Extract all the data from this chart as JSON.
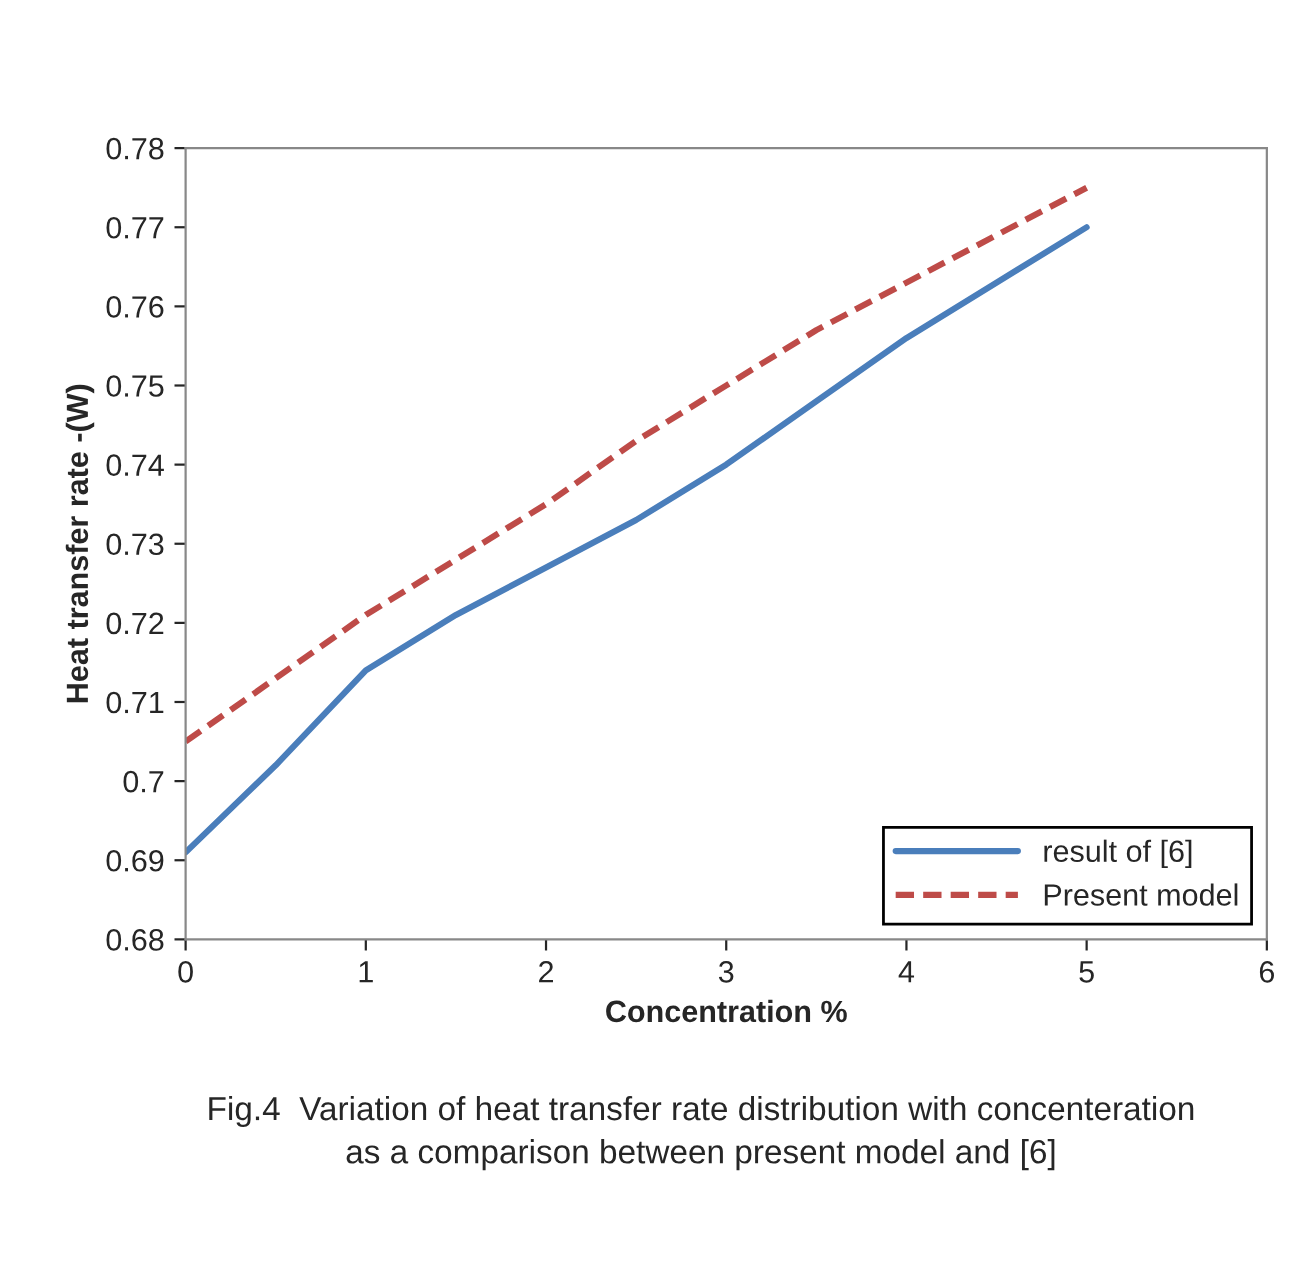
{
  "chart_data": {
    "type": "line",
    "xlabel": "Concentration %",
    "ylabel": "Heat transfer rate -(W)",
    "x": [
      0,
      0.5,
      1,
      1.5,
      2,
      2.5,
      3,
      3.5,
      4,
      4.5,
      5
    ],
    "series": [
      {
        "name": "result of [6]",
        "color": "#4a7ebb",
        "line_style": "solid",
        "values": [
          0.691,
          0.702,
          0.714,
          0.721,
          0.727,
          0.733,
          0.74,
          0.748,
          0.756,
          0.763,
          0.77
        ]
      },
      {
        "name": "Present model",
        "color": "#be4b48",
        "line_style": "dashed",
        "values": [
          0.705,
          0.713,
          0.721,
          0.728,
          0.735,
          0.743,
          0.75,
          0.757,
          0.763,
          0.769,
          0.775
        ]
      }
    ],
    "xlim": [
      0,
      6
    ],
    "xticks": [
      0,
      1,
      2,
      3,
      4,
      5,
      6
    ],
    "ylim": [
      0.68,
      0.78
    ],
    "yticks": [
      0.68,
      0.69,
      0.7,
      0.71,
      0.72,
      0.73,
      0.74,
      0.75,
      0.76,
      0.77,
      0.78
    ],
    "legend": "bottom right",
    "grid": false,
    "marker": "none",
    "annotations": [
      "Fig.4  Variation of heat transfer rate distribution with concenteration\nas a comparison between present model and [6]"
    ]
  }
}
